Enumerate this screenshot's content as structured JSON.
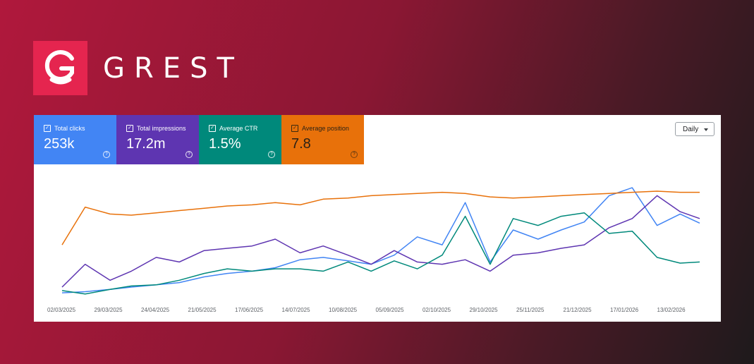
{
  "brand": {
    "name": "GREST",
    "logo_icon": "grest-g-arrow-logo",
    "accent": "#e5254f"
  },
  "metrics": [
    {
      "label": "Total clicks",
      "value": "253k",
      "color": "#4285f4",
      "checked": true
    },
    {
      "label": "Total impressions",
      "value": "17.2m",
      "color": "#5e35b1",
      "checked": true
    },
    {
      "label": "Average CTR",
      "value": "1.5%",
      "color": "#00897b",
      "checked": true
    },
    {
      "label": "Average position",
      "value": "7.8",
      "color": "#e8710a",
      "checked": true
    }
  ],
  "granularity": {
    "selected": "Daily"
  },
  "chart_data": {
    "type": "line",
    "x_ticks": [
      "02/03/2025",
      "29/03/2025",
      "24/04/2025",
      "21/05/2025",
      "17/06/2025",
      "14/07/2025",
      "10/08/2025",
      "05/09/2025",
      "02/10/2025",
      "29/10/2025",
      "25/11/2025",
      "21/12/2025",
      "17/01/2026",
      "13/02/2026"
    ],
    "y_axis_visible": false,
    "grid": false,
    "x": [
      "2025-03-02",
      "2025-03-15",
      "2025-03-29",
      "2025-04-10",
      "2025-04-24",
      "2025-05-07",
      "2025-05-21",
      "2025-06-03",
      "2025-06-17",
      "2025-06-30",
      "2025-07-14",
      "2025-07-27",
      "2025-08-10",
      "2025-08-23",
      "2025-09-05",
      "2025-09-18",
      "2025-10-02",
      "2025-10-15",
      "2025-10-29",
      "2025-11-11",
      "2025-11-25",
      "2025-12-08",
      "2025-12-21",
      "2026-01-04",
      "2026-01-17",
      "2026-01-31",
      "2026-02-13",
      "2026-02-24"
    ],
    "series": [
      {
        "name": "Total clicks",
        "color": "#4285f4",
        "values": [
          3,
          4,
          6,
          8,
          10,
          12,
          17,
          20,
          22,
          25,
          32,
          34,
          31,
          28,
          36,
          52,
          45,
          82,
          30,
          58,
          50,
          58,
          65,
          88,
          95,
          62,
          72,
          64
        ]
      },
      {
        "name": "Total impressions",
        "color": "#5e35b1",
        "values": [
          8,
          28,
          14,
          22,
          34,
          30,
          40,
          42,
          44,
          50,
          38,
          44,
          36,
          28,
          40,
          30,
          28,
          32,
          22,
          36,
          38,
          42,
          45,
          60,
          68,
          88,
          74,
          68
        ]
      },
      {
        "name": "Average CTR",
        "color": "#00897b",
        "values": [
          5,
          2,
          6,
          9,
          10,
          14,
          20,
          24,
          22,
          24,
          24,
          22,
          30,
          22,
          31,
          24,
          36,
          70,
          28,
          68,
          62,
          70,
          73,
          55,
          57,
          34,
          29,
          30
        ]
      },
      {
        "name": "Average position",
        "color": "#e8710a",
        "values": [
          45,
          78,
          72,
          71,
          73,
          75,
          77,
          79,
          80,
          82,
          80,
          85,
          86,
          88,
          89,
          90,
          91,
          90,
          87,
          86,
          87,
          88,
          89,
          90,
          91,
          92,
          91,
          91
        ]
      }
    ]
  }
}
